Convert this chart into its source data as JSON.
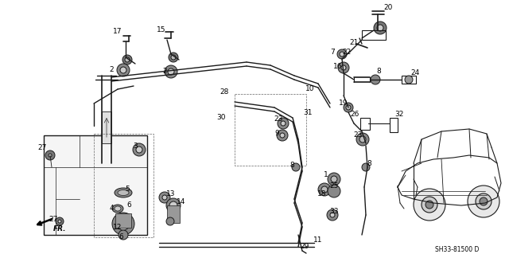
{
  "background_color": "#ffffff",
  "diagram_code": "SH33-81500 D",
  "fig_width": 6.4,
  "fig_height": 3.19,
  "dpi": 100,
  "lc": "#1a1a1a",
  "lw": 0.7
}
